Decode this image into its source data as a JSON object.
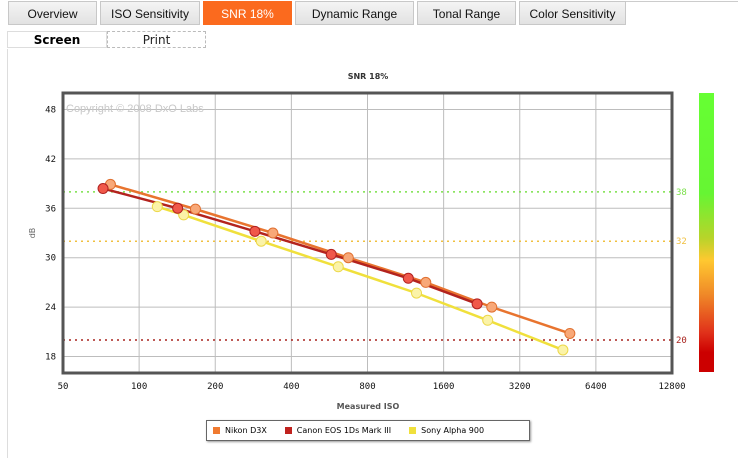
{
  "tabs": [
    {
      "label": "Overview",
      "active": false
    },
    {
      "label": "ISO Sensitivity",
      "active": false
    },
    {
      "label": "SNR 18%",
      "active": true
    },
    {
      "label": "Dynamic Range",
      "active": false
    },
    {
      "label": "Tonal Range",
      "active": false
    },
    {
      "label": "Color Sensitivity",
      "active": false
    }
  ],
  "subtabs": [
    {
      "label": "Screen",
      "active": true
    },
    {
      "label": "Print",
      "active": false
    }
  ],
  "colors": {
    "accent": "#fb6a1e",
    "nikon": "#e8742f",
    "canon": "#b3231e",
    "sony": "#f0e03c"
  },
  "chart_data": {
    "type": "line",
    "title": "SNR 18%",
    "xlabel": "Measured ISO",
    "ylabel": "dB",
    "watermark": "Copyright © 2008 DxO Labs",
    "xscale": "log2",
    "xlim": [
      50,
      12800
    ],
    "ylim": [
      16,
      50
    ],
    "xticks": [
      "50",
      "100",
      "200",
      "400",
      "800",
      "1600",
      "3200",
      "6400",
      "12800"
    ],
    "xtick_values": [
      50,
      100,
      200,
      400,
      800,
      1600,
      3200,
      6400,
      12800
    ],
    "yticks": [
      "18",
      "24",
      "30",
      "36",
      "42",
      "48"
    ],
    "ytick_values": [
      18,
      24,
      30,
      36,
      42,
      48
    ],
    "grid": true,
    "reference_lines": [
      {
        "value": 38,
        "label": "38",
        "color": "#7be04a"
      },
      {
        "value": 32,
        "label": "32",
        "color": "#f0c040"
      },
      {
        "value": 20,
        "label": "20",
        "color": "#a8231e"
      }
    ],
    "legend_position": "bottom",
    "series": [
      {
        "name": "Nikon D3X",
        "line": "#e8742f",
        "fill": "#f8a878",
        "stroke": "#e07030",
        "x": [
          77,
          167,
          338,
          672,
          1360,
          2480,
          5050
        ],
        "y": [
          38.9,
          35.9,
          33.0,
          30.0,
          27.0,
          24.0,
          20.8
        ]
      },
      {
        "name": "Canon EOS 1Ds Mark III",
        "line": "#b3231e",
        "fill": "#f0584a",
        "stroke": "#b02020",
        "x": [
          72,
          142,
          287,
          575,
          1160,
          2170
        ],
        "y": [
          38.4,
          36.0,
          33.2,
          30.4,
          27.5,
          24.4
        ]
      },
      {
        "name": "Sony Alpha 900",
        "line": "#f0e03c",
        "fill": "#fbf3a8",
        "stroke": "#ecd84a",
        "x": [
          118,
          150,
          304,
          613,
          1250,
          2390,
          4740
        ],
        "y": [
          36.2,
          35.2,
          32.0,
          28.9,
          25.7,
          22.4,
          18.8
        ]
      }
    ]
  }
}
